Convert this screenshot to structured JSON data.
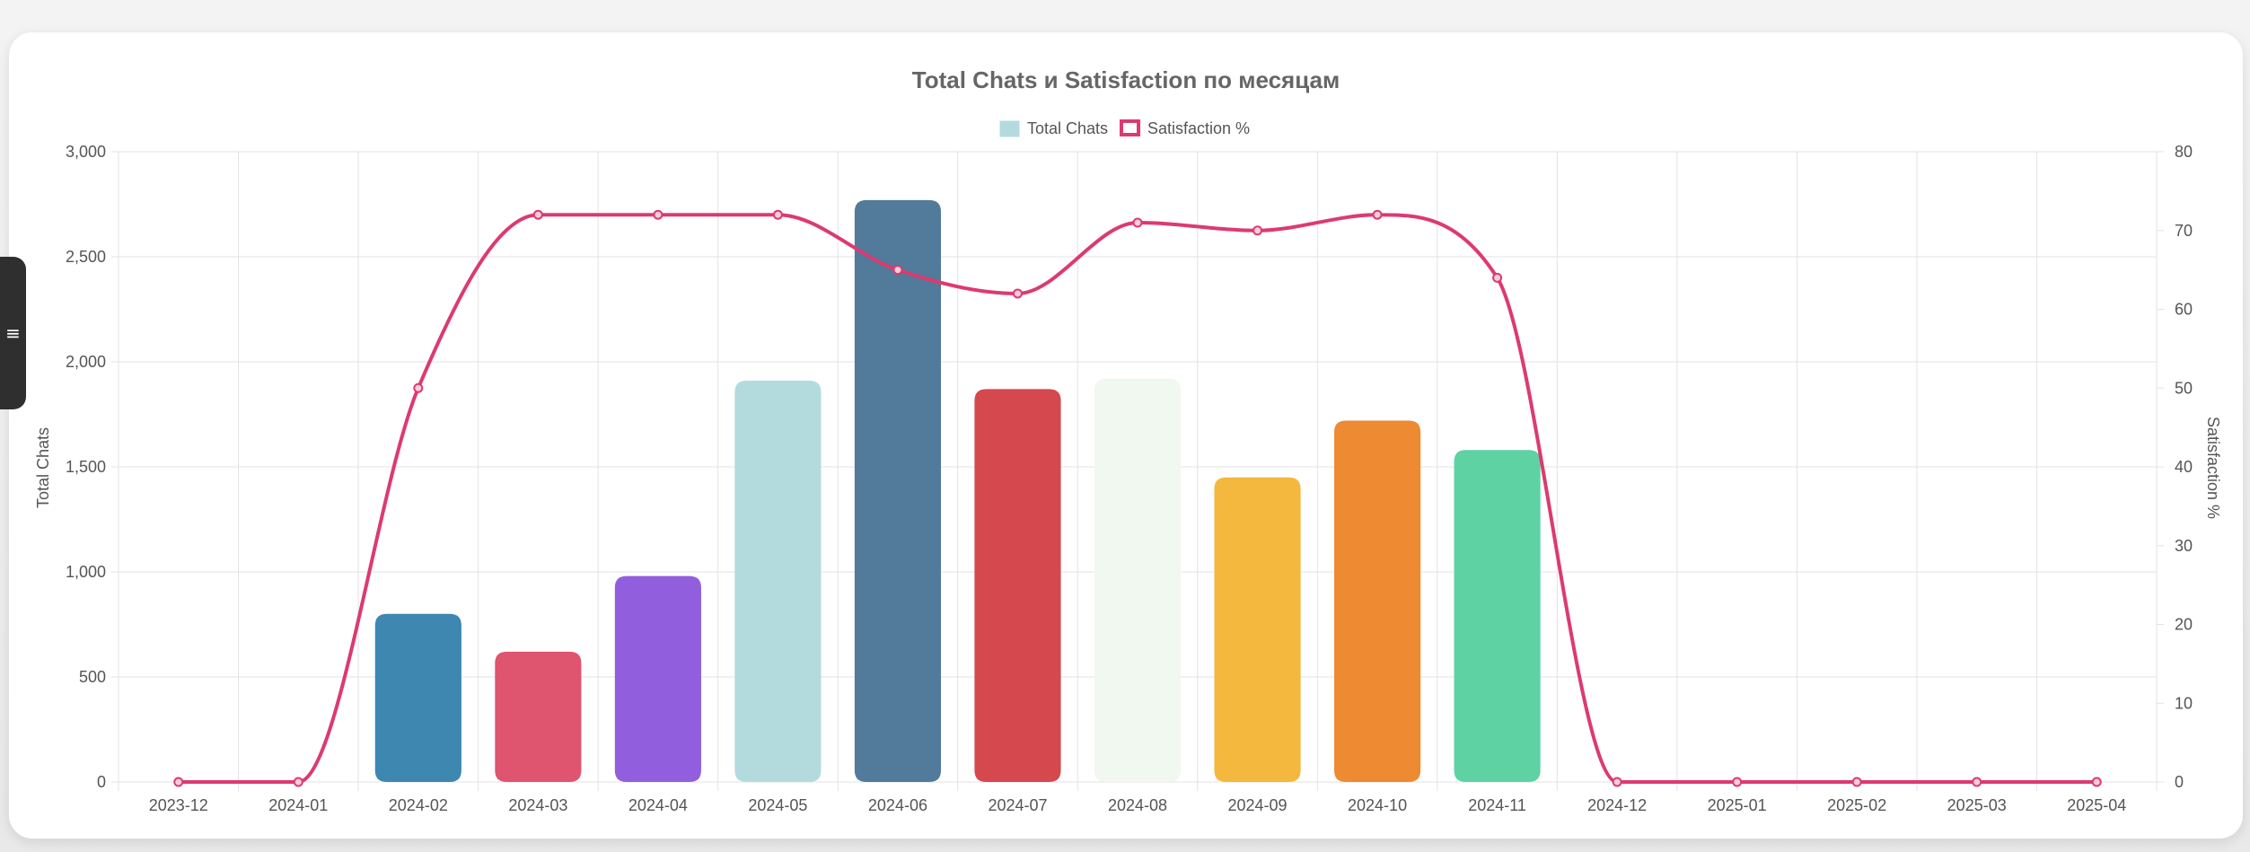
{
  "menu": {
    "icon": "hamburger-icon",
    "glyph": "≡"
  },
  "colors": {
    "line": "#dc3a70",
    "grid": "#e3e3e3",
    "text": "#555555",
    "title": "#666666"
  },
  "chart_data": {
    "type": "bar",
    "title": "Total Chats и Satisfaction по месяцам",
    "categories": [
      "2023-12",
      "2024-01",
      "2024-02",
      "2024-03",
      "2024-04",
      "2024-05",
      "2024-06",
      "2024-07",
      "2024-08",
      "2024-09",
      "2024-10",
      "2024-11",
      "2024-12",
      "2025-01",
      "2025-02",
      "2025-03",
      "2025-04"
    ],
    "y_left": {
      "label": "Total Chats",
      "range": [
        0,
        3000
      ],
      "ticks": [
        {
          "value": 0,
          "label": "0"
        },
        {
          "value": 500,
          "label": "500"
        },
        {
          "value": 1000,
          "label": "1,000"
        },
        {
          "value": 1500,
          "label": "1,500"
        },
        {
          "value": 2000,
          "label": "2,000"
        },
        {
          "value": 2500,
          "label": "2,500"
        },
        {
          "value": 3000,
          "label": "3,000"
        }
      ]
    },
    "y_right": {
      "label": "Satisfaction %",
      "range": [
        0,
        80
      ],
      "ticks": [
        {
          "value": 0,
          "label": "0"
        },
        {
          "value": 10,
          "label": "10"
        },
        {
          "value": 20,
          "label": "20"
        },
        {
          "value": 30,
          "label": "30"
        },
        {
          "value": 40,
          "label": "40"
        },
        {
          "value": 50,
          "label": "50"
        },
        {
          "value": 60,
          "label": "60"
        },
        {
          "value": 70,
          "label": "70"
        },
        {
          "value": 80,
          "label": "80"
        }
      ]
    },
    "grid": true,
    "legend_position": "top-center",
    "series": [
      {
        "name": "Total Chats",
        "type": "bar",
        "axis": "left",
        "legend_color": "#b3dbde",
        "values": [
          0,
          0,
          800,
          620,
          980,
          1910,
          2770,
          1870,
          1920,
          1450,
          1720,
          1580,
          0,
          0,
          0,
          0,
          0
        ],
        "colors": [
          "#3d87b0",
          "#3d87b0",
          "#3d87b0",
          "#df546f",
          "#915fdd",
          "#b3dbde",
          "#517a9b",
          "#d5484e",
          "#f1f8ef",
          "#f3b83d",
          "#ed8a32",
          "#5ed2a3",
          "#3d87b0",
          "#3d87b0",
          "#3d87b0",
          "#3d87b0",
          "#3d87b0"
        ]
      },
      {
        "name": "Satisfaction %",
        "type": "line",
        "axis": "right",
        "color": "#dc3a70",
        "values": [
          0,
          0,
          50,
          72,
          72,
          72,
          65,
          62,
          71,
          70,
          72,
          64,
          0,
          0,
          0,
          0,
          0
        ]
      }
    ]
  }
}
